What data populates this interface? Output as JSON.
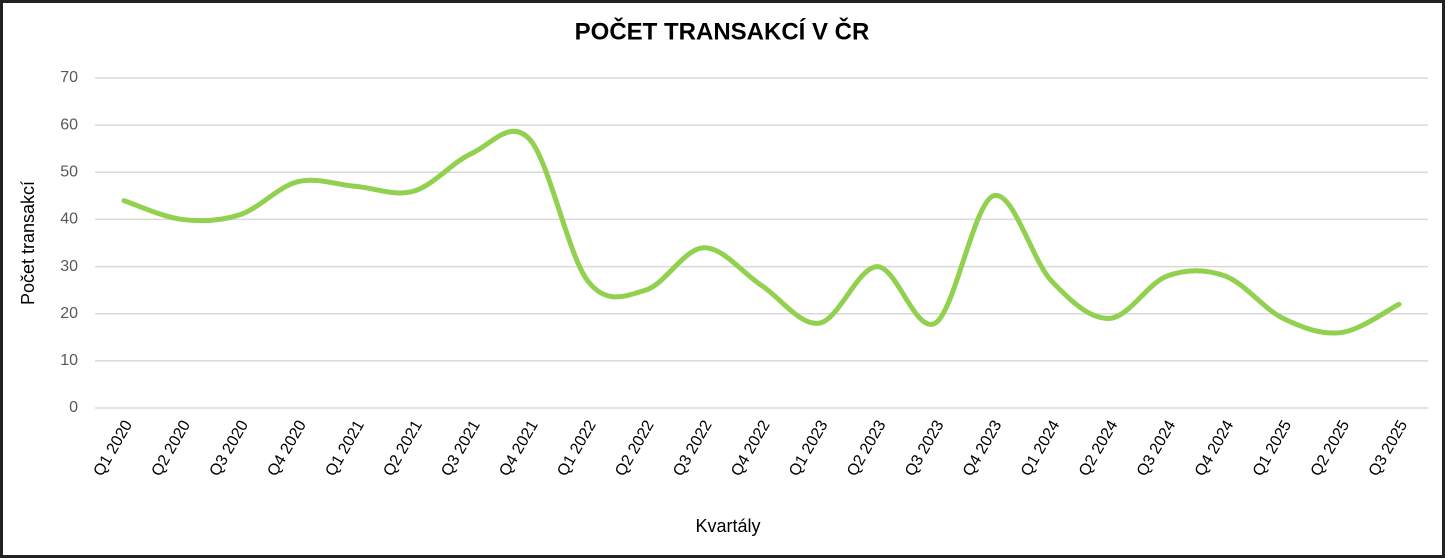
{
  "chart_data": {
    "type": "line",
    "title": "POČET TRANSAKCÍ V ČR",
    "y_label": "Počet transakcí",
    "x_label": "Kvartály",
    "categories": [
      "Q1 2020",
      "Q2 2020",
      "Q3 2020",
      "Q4 2020",
      "Q1 2021",
      "Q2 2021",
      "Q3 2021",
      "Q4 2021",
      "Q1 2022",
      "Q2 2022",
      "Q3 2022",
      "Q4 2022",
      "Q1 2023",
      "Q2 2023",
      "Q3 2023",
      "Q4 2023",
      "Q1 2024",
      "Q2 2024",
      "Q3 2024",
      "Q4 2024",
      "Q1 2025",
      "Q2 2025",
      "Q3 2025"
    ],
    "values": [
      44,
      40,
      41,
      48,
      47,
      46,
      54,
      57,
      27,
      25,
      34,
      26,
      18,
      30,
      18,
      45,
      27,
      19,
      28,
      28,
      19,
      16,
      22
    ],
    "color": "#92d050",
    "smooth": true,
    "ylim": [
      0,
      70
    ],
    "yticks": [
      0,
      10,
      20,
      30,
      40,
      50,
      60,
      70
    ],
    "grid": true
  }
}
